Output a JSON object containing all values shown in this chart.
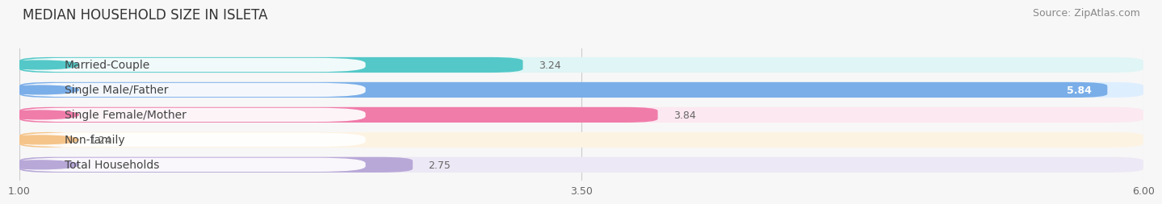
{
  "title": "MEDIAN HOUSEHOLD SIZE IN ISLETA",
  "source": "Source: ZipAtlas.com",
  "categories": [
    "Married-Couple",
    "Single Male/Father",
    "Single Female/Mother",
    "Non-family",
    "Total Households"
  ],
  "values": [
    3.24,
    5.84,
    3.84,
    1.24,
    2.75
  ],
  "bar_colors": [
    "#54c8c8",
    "#7aaee8",
    "#f07caa",
    "#f5c48a",
    "#b8a8d8"
  ],
  "bar_bg_colors": [
    "#e0f5f5",
    "#ddeeff",
    "#fce8f0",
    "#fdf3e3",
    "#ede8f5"
  ],
  "xlim": [
    1.0,
    6.0
  ],
  "xticks": [
    1.0,
    3.5,
    6.0
  ],
  "xtick_labels": [
    "1.00",
    "3.50",
    "6.00"
  ],
  "value_label_inside": [
    false,
    true,
    false,
    false,
    false
  ],
  "background_color": "#f7f7f7",
  "title_fontsize": 12,
  "source_fontsize": 9,
  "label_fontsize": 10,
  "value_fontsize": 9,
  "bar_height": 0.62
}
